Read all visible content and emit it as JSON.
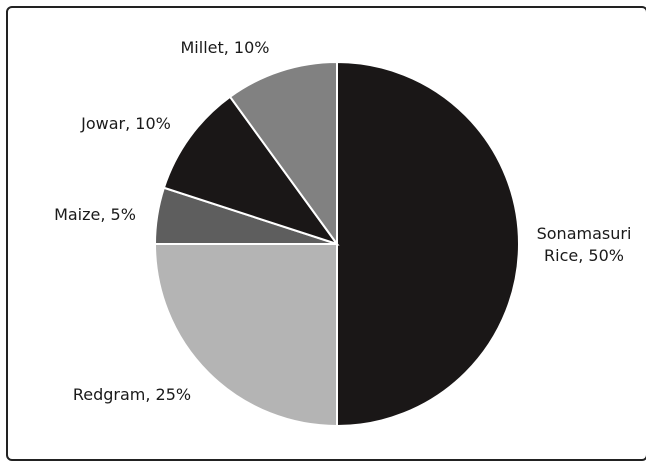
{
  "chart_data": {
    "type": "pie",
    "title": "",
    "slices": [
      {
        "label": "Sonamasuri Rice, 50%",
        "label_lines": [
          "Sonamasuri",
          "Rice, 50%"
        ],
        "name": "Sonamasuri Rice",
        "value": 50,
        "color": "#1a1717"
      },
      {
        "label": "Redgram, 25%",
        "label_lines": [
          "Redgram, 25%"
        ],
        "name": "Redgram",
        "value": 25,
        "color": "#b4b4b4"
      },
      {
        "label": "Maize, 5%",
        "label_lines": [
          "Maize, 5%"
        ],
        "name": "Maize",
        "value": 5,
        "color": "#5e5e5e"
      },
      {
        "label": "Jowar, 10%",
        "label_lines": [
          "Jowar, 10%"
        ],
        "name": "Jowar",
        "value": 10,
        "color": "#1a1717"
      },
      {
        "label": "Millet, 10%",
        "label_lines": [
          "Millet, 10%"
        ],
        "name": "Millet",
        "value": 10,
        "color": "#818181"
      }
    ],
    "start_position": "top",
    "direction": "clockwise",
    "legend": "none",
    "data_labels": "outside, category name and percentage"
  }
}
